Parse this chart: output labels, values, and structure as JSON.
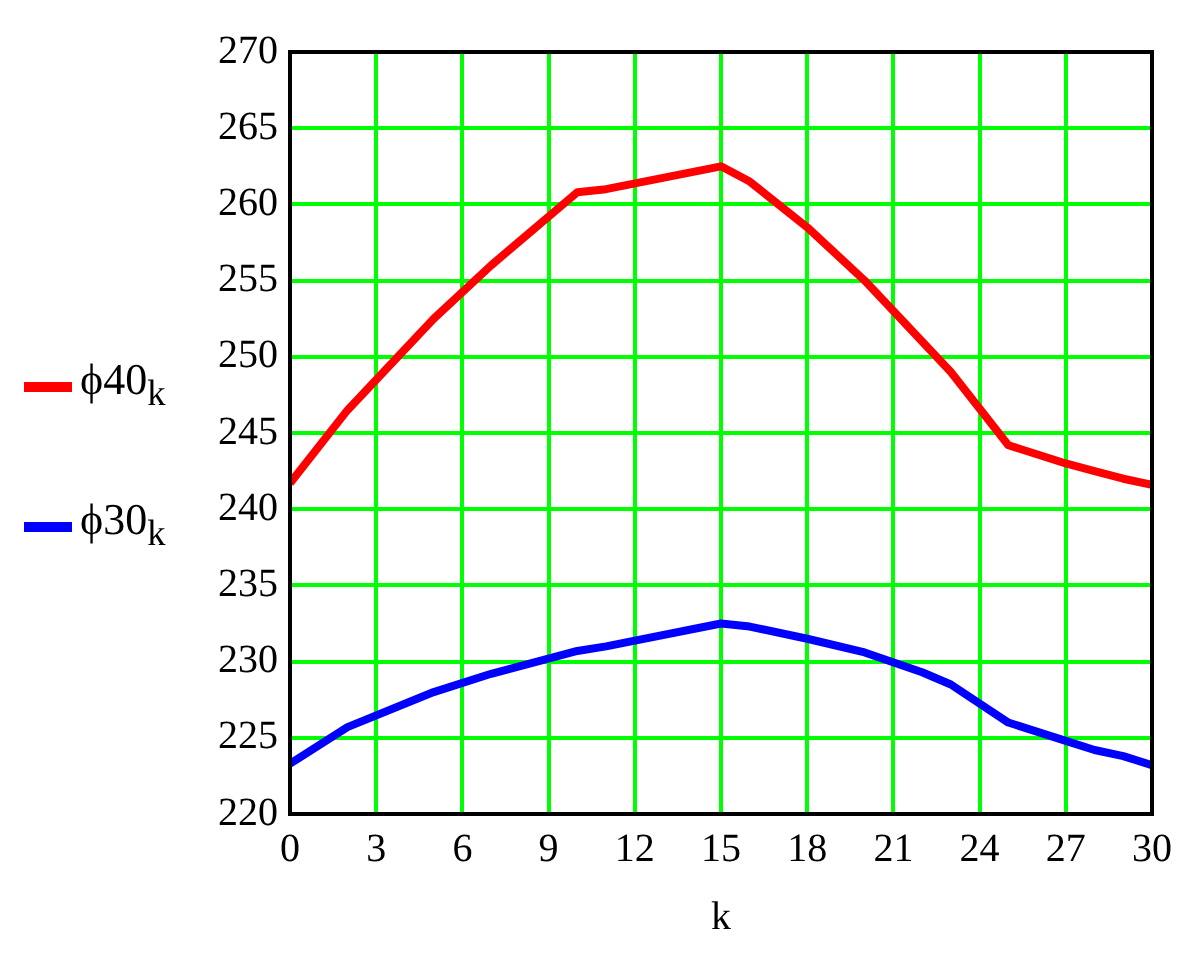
{
  "chart_data": {
    "type": "line",
    "xlabel": "k",
    "x": [
      0,
      2,
      5,
      7,
      10,
      11,
      15,
      16,
      18,
      20,
      22,
      23,
      25,
      27,
      28,
      29,
      30
    ],
    "series": [
      {
        "name": "ϕ40$_{k}$",
        "color": "#ff0000",
        "values": [
          241.7,
          246.5,
          252.5,
          256,
          260.8,
          261,
          262.5,
          261.5,
          258.5,
          255,
          251,
          249,
          244.2,
          243,
          242.5,
          242,
          241.6
        ]
      },
      {
        "name": "ϕ30$_{k}$",
        "color": "#0000ff",
        "values": [
          223.3,
          225.7,
          228,
          229.2,
          230.7,
          231,
          232.5,
          232.3,
          231.5,
          230.6,
          229.3,
          228.5,
          226,
          224.8,
          224.2,
          223.8,
          223.2
        ]
      }
    ],
    "xlim": [
      0,
      30
    ],
    "xticks": [
      0,
      3,
      6,
      9,
      12,
      15,
      18,
      21,
      24,
      27,
      30
    ],
    "ylim": [
      220,
      270
    ],
    "yticks": [
      220,
      225,
      230,
      235,
      240,
      245,
      250,
      255,
      260,
      265,
      270
    ],
    "grid": true,
    "legend": "left",
    "marker": "none",
    "line_style": "solid"
  }
}
